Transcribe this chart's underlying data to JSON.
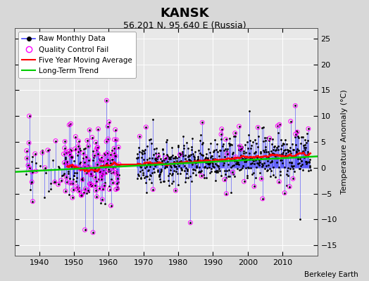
{
  "title": "KANSK",
  "subtitle": "56.201 N, 95.640 E (Russia)",
  "ylabel_right": "Temperature Anomaly (°C)",
  "credit": "Berkeley Earth",
  "ylim": [
    -17,
    27
  ],
  "yticks": [
    -15,
    -10,
    -5,
    0,
    5,
    10,
    15,
    20,
    25
  ],
  "xlim": [
    1933,
    2020
  ],
  "xticks": [
    1940,
    1950,
    1960,
    1970,
    1980,
    1990,
    2000,
    2010
  ],
  "bg_color": "#d8d8d8",
  "plot_bg_color": "#e8e8e8",
  "grid_color": "#ffffff",
  "seed": 12345
}
